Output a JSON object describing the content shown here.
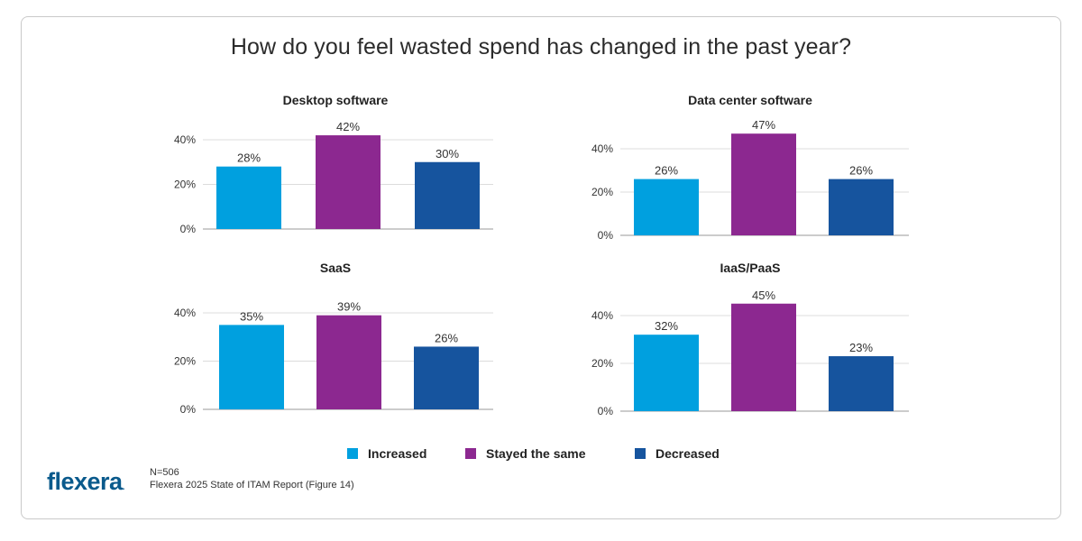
{
  "title": "How do you feel wasted spend has changed in the past year?",
  "colors": {
    "increased": "#00A0DF",
    "stayed": "#8C2890",
    "decreased": "#16549E"
  },
  "legend": [
    {
      "label": "Increased",
      "color": "#00A0DF"
    },
    {
      "label": "Stayed the same",
      "color": "#8C2890"
    },
    {
      "label": "Decreased",
      "color": "#16549E"
    }
  ],
  "footnote": {
    "n": "N=506",
    "source": "Flexera 2025 State of ITAM Report (Figure 14)"
  },
  "logo": {
    "text": "flexera"
  },
  "chart_data": [
    {
      "type": "bar",
      "title": "Desktop software",
      "categories": [
        "Increased",
        "Stayed the same",
        "Decreased"
      ],
      "values": [
        28,
        42,
        30
      ],
      "value_labels": [
        "28%",
        "42%",
        "30%"
      ],
      "yticks": [
        "0%",
        "20%",
        "40%"
      ],
      "ylim": [
        0,
        40
      ]
    },
    {
      "type": "bar",
      "title": "Data center software",
      "categories": [
        "Increased",
        "Stayed the same",
        "Decreased"
      ],
      "values": [
        26,
        47,
        26
      ],
      "value_labels": [
        "26%",
        "47%",
        "26%"
      ],
      "yticks": [
        "0%",
        "20%",
        "40%"
      ],
      "ylim": [
        0,
        40
      ]
    },
    {
      "type": "bar",
      "title": "SaaS",
      "categories": [
        "Increased",
        "Stayed the same",
        "Decreased"
      ],
      "values": [
        35,
        39,
        26
      ],
      "value_labels": [
        "35%",
        "39%",
        "26%"
      ],
      "yticks": [
        "0%",
        "20%",
        "40%"
      ],
      "ylim": [
        0,
        40
      ]
    },
    {
      "type": "bar",
      "title": "IaaS/PaaS",
      "categories": [
        "Increased",
        "Stayed the same",
        "Decreased"
      ],
      "values": [
        32,
        45,
        23
      ],
      "value_labels": [
        "32%",
        "45%",
        "23%"
      ],
      "yticks": [
        "0%",
        "20%",
        "40%"
      ],
      "ylim": [
        0,
        40
      ]
    }
  ]
}
